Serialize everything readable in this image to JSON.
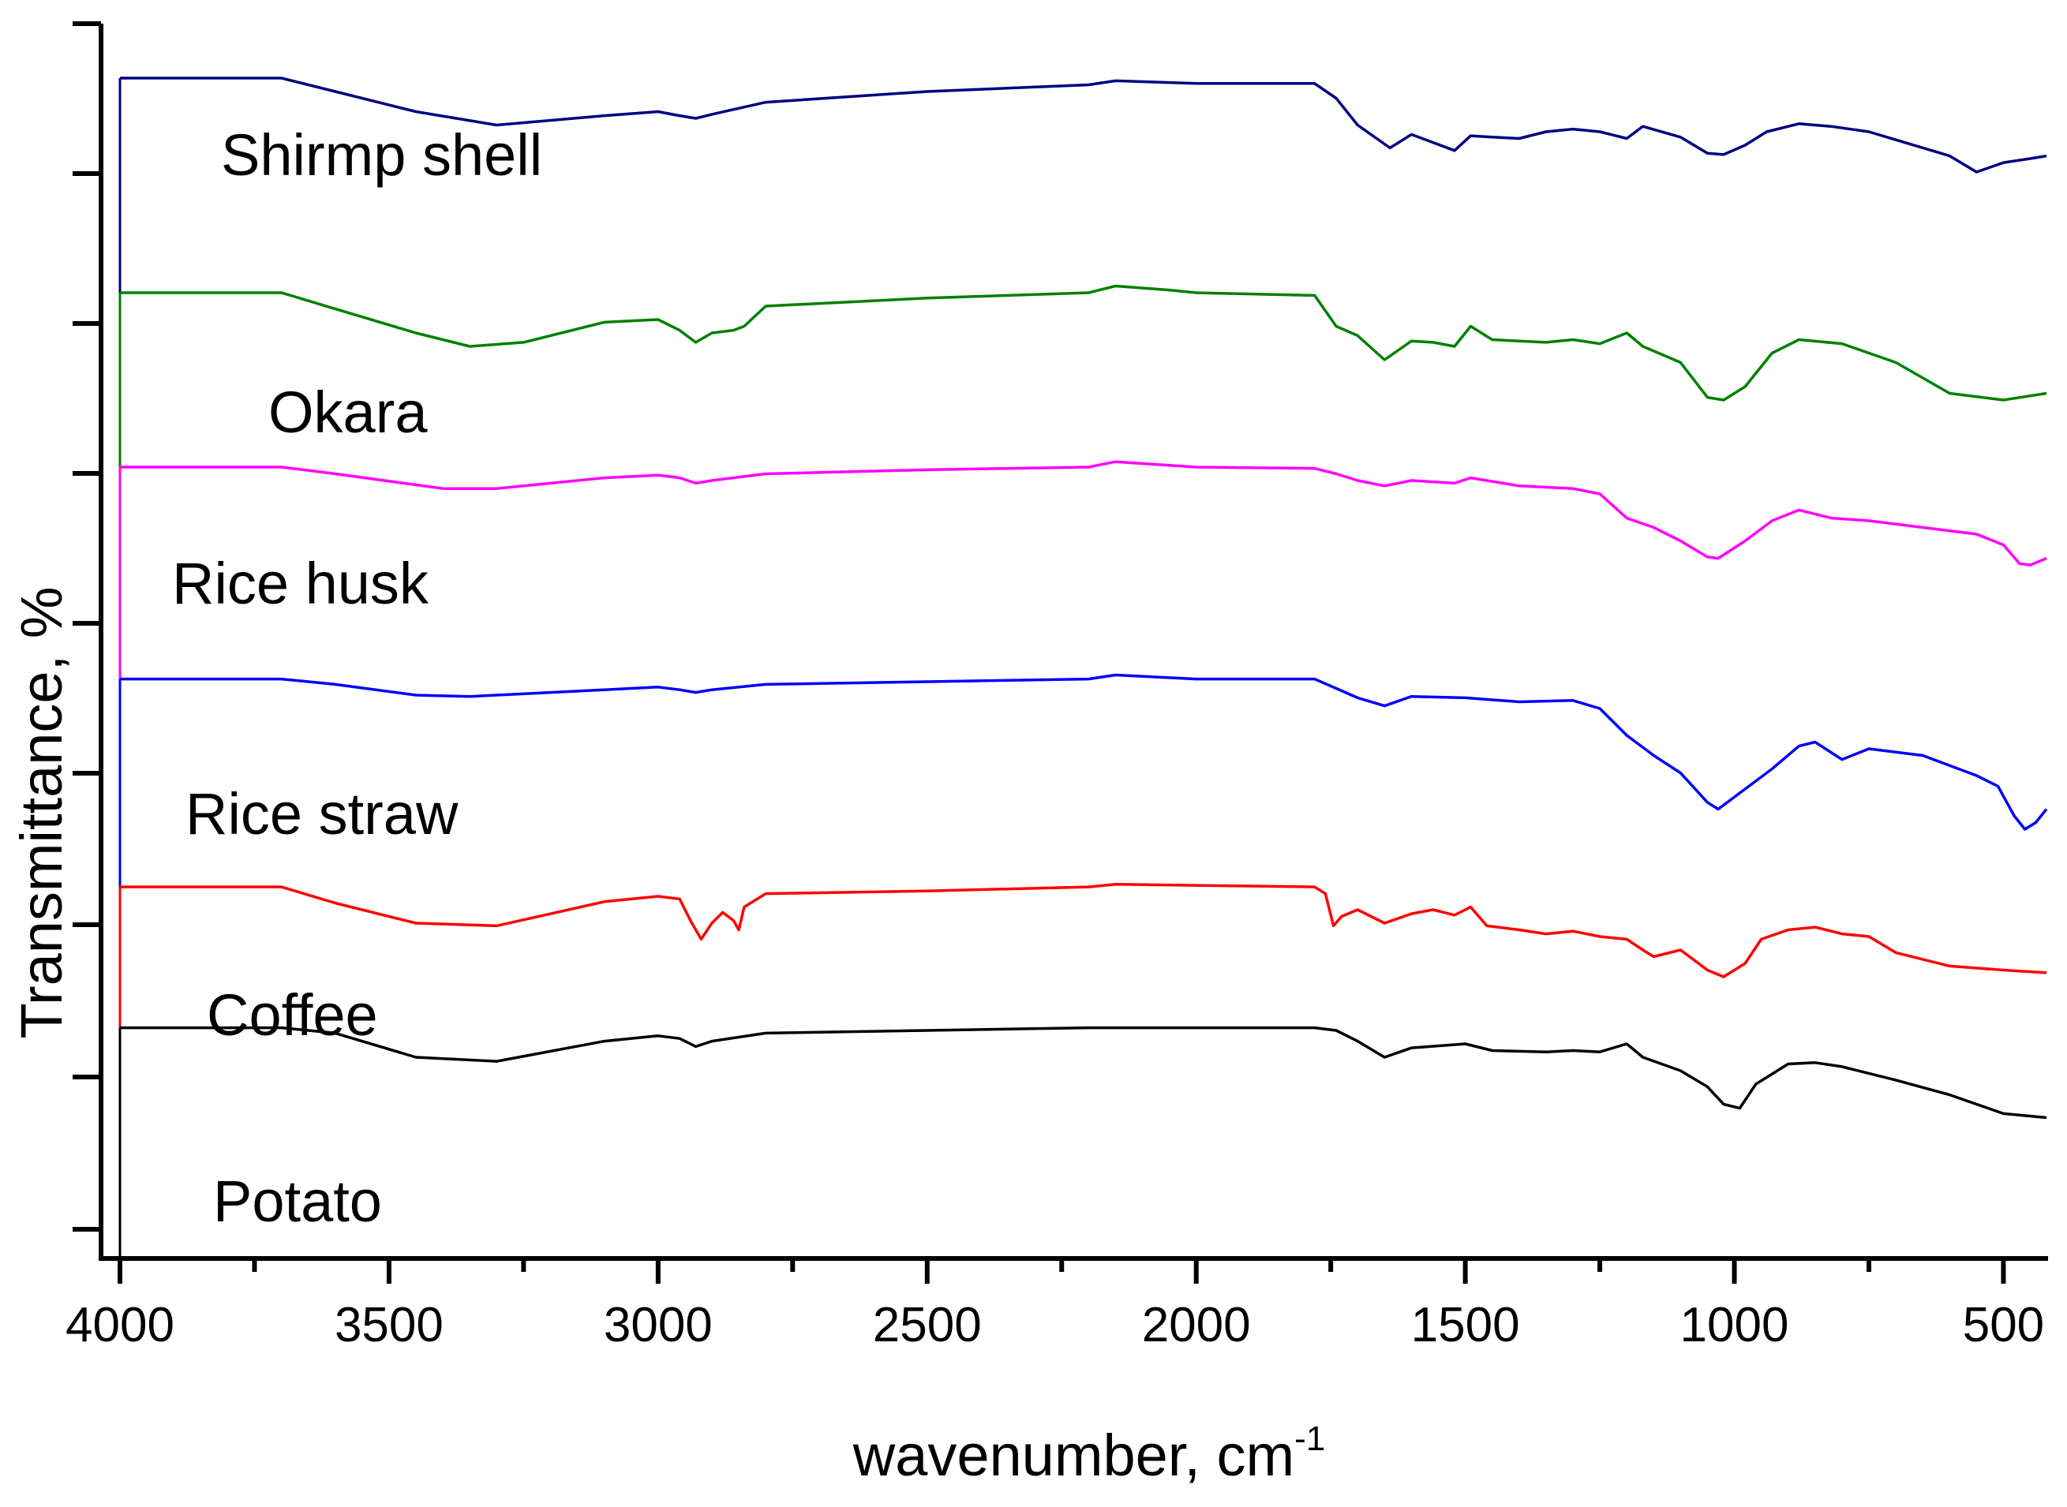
{
  "chart_data": {
    "type": "line",
    "title": "",
    "xlabel": "wavenumber, cm",
    "xlabel_sup": "-1",
    "ylabel": "Transmittance, %",
    "xlim": [
      4000,
      420
    ],
    "x_reversed": true,
    "y_tick_labels_shown": false,
    "grid": false,
    "legend": "inline labels",
    "x_ticks": [
      {
        "value": 4000,
        "label": "4000"
      },
      {
        "value": 3500,
        "label": "3500"
      },
      {
        "value": 3000,
        "label": "3000"
      },
      {
        "value": 2500,
        "label": "2500"
      },
      {
        "value": 2000,
        "label": "2000"
      },
      {
        "value": 1500,
        "label": "1500"
      },
      {
        "value": 1000,
        "label": "1000"
      },
      {
        "value": 500,
        "label": "500"
      }
    ],
    "series": [
      {
        "name": "Shirmp shell",
        "color": "#000080",
        "baseline": 5.4,
        "points": [
          [
            4000,
            5.4
          ],
          [
            3700,
            5.4
          ],
          [
            3600,
            5.3
          ],
          [
            3450,
            5.15
          ],
          [
            3300,
            5.05
          ],
          [
            3100,
            5.12
          ],
          [
            3000,
            5.15
          ],
          [
            2960,
            5.12
          ],
          [
            2930,
            5.1
          ],
          [
            2900,
            5.13
          ],
          [
            2800,
            5.22
          ],
          [
            2500,
            5.3
          ],
          [
            2200,
            5.35
          ],
          [
            2150,
            5.38
          ],
          [
            2000,
            5.36
          ],
          [
            1780,
            5.36
          ],
          [
            1740,
            5.25
          ],
          [
            1700,
            5.05
          ],
          [
            1640,
            4.88
          ],
          [
            1600,
            4.98
          ],
          [
            1560,
            4.92
          ],
          [
            1520,
            4.86
          ],
          [
            1490,
            4.97
          ],
          [
            1450,
            4.96
          ],
          [
            1400,
            4.95
          ],
          [
            1350,
            5.0
          ],
          [
            1300,
            5.02
          ],
          [
            1250,
            5.0
          ],
          [
            1200,
            4.95
          ],
          [
            1170,
            5.04
          ],
          [
            1100,
            4.96
          ],
          [
            1050,
            4.84
          ],
          [
            1020,
            4.83
          ],
          [
            980,
            4.9
          ],
          [
            940,
            5.0
          ],
          [
            880,
            5.06
          ],
          [
            820,
            5.04
          ],
          [
            750,
            5.0
          ],
          [
            700,
            4.94
          ],
          [
            600,
            4.82
          ],
          [
            550,
            4.7
          ],
          [
            500,
            4.77
          ],
          [
            450,
            4.8
          ],
          [
            420,
            4.82
          ]
        ]
      },
      {
        "name": "Okara",
        "color": "#008000",
        "baseline": 3.8,
        "points": [
          [
            4000,
            3.8
          ],
          [
            3700,
            3.8
          ],
          [
            3600,
            3.68
          ],
          [
            3450,
            3.5
          ],
          [
            3350,
            3.4
          ],
          [
            3250,
            3.43
          ],
          [
            3100,
            3.58
          ],
          [
            3000,
            3.6
          ],
          [
            2960,
            3.52
          ],
          [
            2930,
            3.43
          ],
          [
            2900,
            3.5
          ],
          [
            2860,
            3.52
          ],
          [
            2840,
            3.55
          ],
          [
            2800,
            3.7
          ],
          [
            2500,
            3.76
          ],
          [
            2200,
            3.8
          ],
          [
            2150,
            3.85
          ],
          [
            2050,
            3.82
          ],
          [
            2000,
            3.8
          ],
          [
            1780,
            3.78
          ],
          [
            1740,
            3.55
          ],
          [
            1700,
            3.48
          ],
          [
            1650,
            3.3
          ],
          [
            1600,
            3.44
          ],
          [
            1560,
            3.43
          ],
          [
            1520,
            3.4
          ],
          [
            1490,
            3.55
          ],
          [
            1450,
            3.45
          ],
          [
            1400,
            3.44
          ],
          [
            1350,
            3.43
          ],
          [
            1300,
            3.45
          ],
          [
            1250,
            3.42
          ],
          [
            1200,
            3.5
          ],
          [
            1170,
            3.4
          ],
          [
            1100,
            3.28
          ],
          [
            1050,
            3.02
          ],
          [
            1020,
            3.0
          ],
          [
            980,
            3.1
          ],
          [
            930,
            3.35
          ],
          [
            880,
            3.45
          ],
          [
            800,
            3.42
          ],
          [
            700,
            3.28
          ],
          [
            600,
            3.05
          ],
          [
            500,
            3.0
          ],
          [
            420,
            3.05
          ]
        ]
      },
      {
        "name": "Rice husk",
        "color": "#ff00ff",
        "baseline": 2.5,
        "points": [
          [
            4000,
            2.5
          ],
          [
            3700,
            2.5
          ],
          [
            3600,
            2.45
          ],
          [
            3400,
            2.34
          ],
          [
            3300,
            2.34
          ],
          [
            3100,
            2.42
          ],
          [
            3000,
            2.44
          ],
          [
            2960,
            2.42
          ],
          [
            2930,
            2.38
          ],
          [
            2900,
            2.4
          ],
          [
            2800,
            2.45
          ],
          [
            2500,
            2.48
          ],
          [
            2200,
            2.5
          ],
          [
            2150,
            2.54
          ],
          [
            2000,
            2.5
          ],
          [
            1780,
            2.49
          ],
          [
            1740,
            2.45
          ],
          [
            1700,
            2.4
          ],
          [
            1650,
            2.36
          ],
          [
            1600,
            2.4
          ],
          [
            1520,
            2.38
          ],
          [
            1490,
            2.42
          ],
          [
            1400,
            2.36
          ],
          [
            1300,
            2.34
          ],
          [
            1250,
            2.3
          ],
          [
            1200,
            2.12
          ],
          [
            1150,
            2.05
          ],
          [
            1100,
            1.95
          ],
          [
            1050,
            1.83
          ],
          [
            1030,
            1.82
          ],
          [
            980,
            1.95
          ],
          [
            930,
            2.1
          ],
          [
            880,
            2.18
          ],
          [
            820,
            2.12
          ],
          [
            750,
            2.1
          ],
          [
            650,
            2.05
          ],
          [
            550,
            2.0
          ],
          [
            500,
            1.92
          ],
          [
            470,
            1.78
          ],
          [
            450,
            1.77
          ],
          [
            420,
            1.82
          ]
        ]
      },
      {
        "name": "Rice straw",
        "color": "#0000ff",
        "baseline": 0.92,
        "points": [
          [
            4000,
            0.92
          ],
          [
            3700,
            0.92
          ],
          [
            3600,
            0.88
          ],
          [
            3450,
            0.8
          ],
          [
            3350,
            0.79
          ],
          [
            3100,
            0.84
          ],
          [
            3000,
            0.86
          ],
          [
            2960,
            0.84
          ],
          [
            2930,
            0.82
          ],
          [
            2900,
            0.84
          ],
          [
            2800,
            0.88
          ],
          [
            2500,
            0.9
          ],
          [
            2200,
            0.92
          ],
          [
            2150,
            0.95
          ],
          [
            2000,
            0.92
          ],
          [
            1780,
            0.92
          ],
          [
            1740,
            0.85
          ],
          [
            1700,
            0.78
          ],
          [
            1650,
            0.72
          ],
          [
            1600,
            0.79
          ],
          [
            1500,
            0.78
          ],
          [
            1400,
            0.75
          ],
          [
            1300,
            0.76
          ],
          [
            1250,
            0.7
          ],
          [
            1200,
            0.5
          ],
          [
            1150,
            0.35
          ],
          [
            1100,
            0.22
          ],
          [
            1050,
            0.0
          ],
          [
            1030,
            -0.05
          ],
          [
            980,
            0.1
          ],
          [
            930,
            0.25
          ],
          [
            880,
            0.42
          ],
          [
            850,
            0.45
          ],
          [
            800,
            0.32
          ],
          [
            750,
            0.4
          ],
          [
            650,
            0.35
          ],
          [
            550,
            0.2
          ],
          [
            510,
            0.12
          ],
          [
            480,
            -0.1
          ],
          [
            460,
            -0.2
          ],
          [
            440,
            -0.15
          ],
          [
            420,
            -0.05
          ]
        ]
      },
      {
        "name": "Coffee",
        "color": "#ff0000",
        "baseline": -0.63,
        "points": [
          [
            4000,
            -0.63
          ],
          [
            3700,
            -0.63
          ],
          [
            3600,
            -0.75
          ],
          [
            3450,
            -0.9
          ],
          [
            3300,
            -0.92
          ],
          [
            3100,
            -0.74
          ],
          [
            3000,
            -0.7
          ],
          [
            2960,
            -0.72
          ],
          [
            2940,
            -0.88
          ],
          [
            2920,
            -1.02
          ],
          [
            2900,
            -0.9
          ],
          [
            2880,
            -0.82
          ],
          [
            2860,
            -0.88
          ],
          [
            2850,
            -0.95
          ],
          [
            2840,
            -0.78
          ],
          [
            2800,
            -0.68
          ],
          [
            2500,
            -0.66
          ],
          [
            2200,
            -0.63
          ],
          [
            2150,
            -0.61
          ],
          [
            1780,
            -0.63
          ],
          [
            1760,
            -0.68
          ],
          [
            1745,
            -0.92
          ],
          [
            1730,
            -0.85
          ],
          [
            1700,
            -0.8
          ],
          [
            1650,
            -0.9
          ],
          [
            1600,
            -0.83
          ],
          [
            1560,
            -0.8
          ],
          [
            1520,
            -0.84
          ],
          [
            1490,
            -0.78
          ],
          [
            1460,
            -0.92
          ],
          [
            1400,
            -0.95
          ],
          [
            1350,
            -0.98
          ],
          [
            1300,
            -0.96
          ],
          [
            1250,
            -1.0
          ],
          [
            1200,
            -1.02
          ],
          [
            1170,
            -1.1
          ],
          [
            1150,
            -1.15
          ],
          [
            1100,
            -1.1
          ],
          [
            1050,
            -1.25
          ],
          [
            1020,
            -1.3
          ],
          [
            980,
            -1.2
          ],
          [
            950,
            -1.02
          ],
          [
            900,
            -0.95
          ],
          [
            850,
            -0.93
          ],
          [
            800,
            -0.98
          ],
          [
            750,
            -1.0
          ],
          [
            700,
            -1.12
          ],
          [
            600,
            -1.22
          ],
          [
            500,
            -1.25
          ],
          [
            420,
            -1.27
          ]
        ]
      },
      {
        "name": "Potato",
        "color": "#000000",
        "baseline": -1.68,
        "points": [
          [
            4000,
            -1.68
          ],
          [
            3700,
            -1.68
          ],
          [
            3600,
            -1.72
          ],
          [
            3450,
            -1.9
          ],
          [
            3300,
            -1.93
          ],
          [
            3100,
            -1.78
          ],
          [
            3000,
            -1.74
          ],
          [
            2960,
            -1.76
          ],
          [
            2930,
            -1.82
          ],
          [
            2900,
            -1.78
          ],
          [
            2800,
            -1.72
          ],
          [
            2500,
            -1.7
          ],
          [
            2200,
            -1.68
          ],
          [
            2000,
            -1.68
          ],
          [
            1780,
            -1.68
          ],
          [
            1740,
            -1.7
          ],
          [
            1700,
            -1.78
          ],
          [
            1650,
            -1.9
          ],
          [
            1600,
            -1.83
          ],
          [
            1500,
            -1.8
          ],
          [
            1450,
            -1.85
          ],
          [
            1350,
            -1.86
          ],
          [
            1300,
            -1.85
          ],
          [
            1250,
            -1.86
          ],
          [
            1200,
            -1.8
          ],
          [
            1170,
            -1.9
          ],
          [
            1100,
            -2.0
          ],
          [
            1050,
            -2.12
          ],
          [
            1020,
            -2.25
          ],
          [
            990,
            -2.28
          ],
          [
            960,
            -2.1
          ],
          [
            900,
            -1.95
          ],
          [
            850,
            -1.94
          ],
          [
            800,
            -1.97
          ],
          [
            700,
            -2.07
          ],
          [
            600,
            -2.18
          ],
          [
            500,
            -2.32
          ],
          [
            420,
            -2.35
          ]
        ]
      }
    ]
  }
}
